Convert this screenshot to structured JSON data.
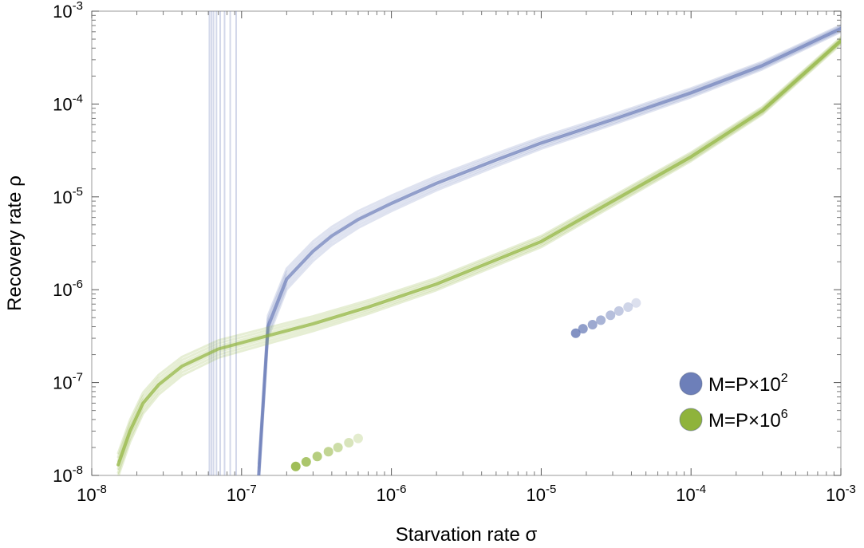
{
  "colors": {
    "blue": "#6d7fb9",
    "green": "#8fb33b",
    "frame": "#9a9a9a"
  },
  "chart_data": {
    "type": "line",
    "xscale": "log",
    "yscale": "log",
    "xlim": [
      1e-08,
      0.001
    ],
    "ylim": [
      1e-08,
      0.001
    ],
    "grid": false,
    "legend_position": "bottom-right",
    "xlabel": "Starvation rate σ",
    "ylabel": "Recovery rate ρ",
    "x_ticks": [
      {
        "base": "10",
        "exp": "-8"
      },
      {
        "base": "10",
        "exp": "-7"
      },
      {
        "base": "10",
        "exp": "-6"
      },
      {
        "base": "10",
        "exp": "-5"
      },
      {
        "base": "10",
        "exp": "-4"
      },
      {
        "base": "10",
        "exp": "-3"
      }
    ],
    "y_ticks": [
      {
        "base": "10",
        "exp": "-8"
      },
      {
        "base": "10",
        "exp": "-7"
      },
      {
        "base": "10",
        "exp": "-6"
      },
      {
        "base": "10",
        "exp": "-5"
      },
      {
        "base": "10",
        "exp": "-4"
      },
      {
        "base": "10",
        "exp": "-3"
      }
    ],
    "series": [
      {
        "name": "M=P×10",
        "name_exp": "2",
        "color": "#6d7fb9",
        "x": [
          1.3e-07,
          1.5e-07,
          2e-07,
          3e-07,
          4e-07,
          6e-07,
          1e-06,
          2e-06,
          5e-06,
          1e-05,
          3e-05,
          0.0001,
          0.0003,
          0.001
        ],
        "y": [
          1e-08,
          4e-07,
          1.3e-06,
          2.6e-06,
          3.8e-06,
          5.7e-06,
          8.5e-06,
          1.4e-05,
          2.5e-05,
          3.8e-05,
          6.8e-05,
          0.000132,
          0.00026,
          0.00065
        ],
        "vertical_lines_x": [
          6.1e-08,
          6.3e-08,
          6.5e-08,
          6.8e-08,
          7.2e-08,
          7.7e-08,
          8.4e-08,
          9.2e-08
        ],
        "points": {
          "x": [
            1.7e-05,
            1.9e-05,
            2.2e-05,
            2.5e-05,
            2.9e-05,
            3.3e-05,
            3.8e-05,
            4.3e-05
          ],
          "y": [
            3.4e-07,
            3.8e-07,
            4.2e-07,
            4.7e-07,
            5.3e-07,
            5.9e-07,
            6.5e-07,
            7.2e-07
          ]
        }
      },
      {
        "name": "M=P×10",
        "name_exp": "6",
        "color": "#8fb33b",
        "x": [
          1.5e-08,
          1.8e-08,
          2.2e-08,
          2.8e-08,
          4e-08,
          7e-08,
          1.5e-07,
          3e-07,
          7e-07,
          2e-06,
          1e-05,
          3e-05,
          0.0001,
          0.0003,
          0.001
        ],
        "y": [
          1.3e-08,
          3e-08,
          6e-08,
          9.5e-08,
          1.5e-07,
          2.3e-07,
          3.2e-07,
          4.3e-07,
          6.5e-07,
          1.15e-06,
          3.3e-06,
          9e-06,
          2.7e-05,
          8.5e-05,
          0.00048
        ],
        "points": {
          "x": [
            2.3e-07,
            2.7e-07,
            3.2e-07,
            3.8e-07,
            4.4e-07,
            5.2e-07,
            6e-07
          ],
          "y": [
            1.25e-08,
            1.4e-08,
            1.6e-08,
            1.8e-08,
            2e-08,
            2.25e-08,
            2.5e-08
          ]
        }
      }
    ]
  }
}
